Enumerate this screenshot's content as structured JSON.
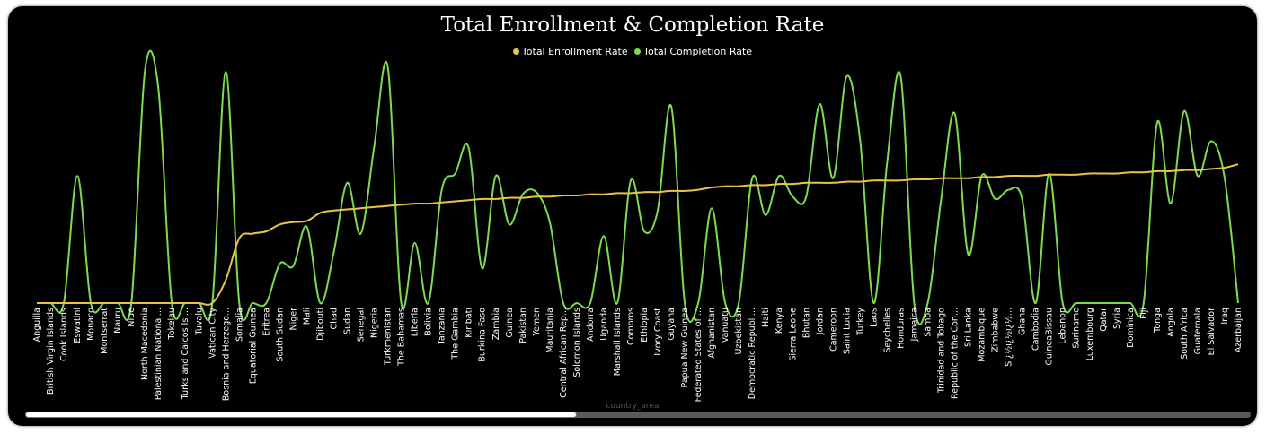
{
  "chart_data": {
    "type": "line",
    "title": "Total Enrollment & Completion Rate",
    "xlabel": "country_area",
    "ylabel": "",
    "legend_position": "top-center",
    "grid": false,
    "ylim": [
      0,
      100
    ],
    "categories": [
      "Anguilla",
      "British Virgin Islands",
      "Cook Islands",
      "Eswatini",
      "Monaco",
      "Montserrat",
      "Nauru",
      "Niue",
      "North Macedonia",
      "Palestinian National...",
      "Tokelau",
      "Turks and Caicos Isl...",
      "Tuvalu",
      "Vatican City",
      "Bosnia and Herzego...",
      "Somalia",
      "Equatorial Guinea",
      "Eritrea",
      "South Sudan",
      "Niger",
      "Mali",
      "Djibouti",
      "Chad",
      "Sudan",
      "Senegal",
      "Nigeria",
      "Turkmenistan",
      "The Bahamas",
      "Liberia",
      "Bolivia",
      "Tanzania",
      "The Gambia",
      "Kiribati",
      "Burkina Faso",
      "Zambia",
      "Guinea",
      "Pakistan",
      "Yemen",
      "Mauritania",
      "Central African Rep...",
      "Solomon Islands",
      "Andorra",
      "Uganda",
      "Marshall Islands",
      "Comoros",
      "Ethiopia",
      "Ivory Coast",
      "Guyana",
      "Papua New Guinea",
      "Federated States of ...",
      "Afghanistan",
      "Vanuatu",
      "Uzbekistan",
      "Democratic Republi...",
      "Haiti",
      "Kenya",
      "Sierra Leone",
      "Bhutan",
      "Jordan",
      "Cameroon",
      "Saint Lucia",
      "Turkey",
      "Laos",
      "Seychelles",
      "Honduras",
      "Jamaica",
      "Samoa",
      "Trinidad and Tobago",
      "Republic of the Con...",
      "Sri Lanka",
      "Mozambique",
      "Zimbabwe",
      "Sï¿½ï¿½ï¿½...",
      "Ghana",
      "Cambodia",
      "GuineaBissau",
      "Lebanon",
      "Suriname",
      "Luxembourg",
      "Qatar",
      "Syria",
      "Dominica",
      "Fiji",
      "Tonga",
      "Angola",
      "South Africa",
      "Guatemala",
      "El Salvador",
      "Iraq",
      "Azerbaijan"
    ],
    "series": [
      {
        "name": "Total Enrollment Rate",
        "color": "#E8C547",
        "values": [
          0,
          0,
          0,
          0,
          0,
          0,
          0,
          0,
          0,
          0,
          0,
          0,
          0,
          0,
          10,
          28,
          30,
          31,
          34,
          35,
          35.5,
          39,
          40,
          40.5,
          41,
          41.5,
          42,
          42.5,
          43,
          43,
          43.5,
          44,
          44.5,
          45,
          45,
          45.5,
          45.5,
          46,
          46,
          46.5,
          46.5,
          47,
          47,
          47.5,
          47.5,
          48,
          48,
          48.5,
          48.5,
          49,
          50,
          50.5,
          50.5,
          51,
          51,
          51.5,
          51.5,
          52,
          52,
          52,
          52.5,
          52.5,
          53,
          53,
          53,
          53.5,
          53.5,
          54,
          54,
          54,
          54.5,
          54.5,
          55,
          55,
          55,
          55.5,
          55.5,
          55.5,
          56,
          56,
          56,
          56.5,
          56.5,
          57,
          57,
          57.5,
          57.5,
          58,
          58.5,
          60
        ]
      },
      {
        "name": "Total Completion Rate",
        "color": "#7EDB50",
        "values": [
          0,
          0,
          0,
          55,
          0,
          0,
          0,
          0,
          100,
          93,
          0,
          0,
          0,
          0,
          100,
          0,
          0,
          0,
          17,
          16,
          33,
          0,
          22,
          52,
          30,
          68,
          102,
          0,
          26,
          0,
          49,
          56,
          67,
          15,
          55,
          34,
          47,
          48,
          35,
          0,
          0,
          0,
          29,
          0,
          53,
          31,
          40,
          85,
          0,
          0,
          41,
          0,
          0,
          54,
          38,
          55,
          46,
          46,
          86,
          54,
          98,
          70,
          0,
          61,
          98,
          0,
          0,
          45,
          82,
          21,
          55,
          45,
          49,
          45,
          0,
          56,
          0,
          0,
          0,
          0,
          0,
          0,
          0,
          78,
          43,
          83,
          55,
          70,
          54,
          0
        ]
      }
    ]
  },
  "x_axis_title": "country_area",
  "scrollbar": {
    "visible_fraction": 0.45
  },
  "colors": {
    "background": "#000000",
    "axis_text": "#ffffff",
    "axis_title": "#555555"
  }
}
